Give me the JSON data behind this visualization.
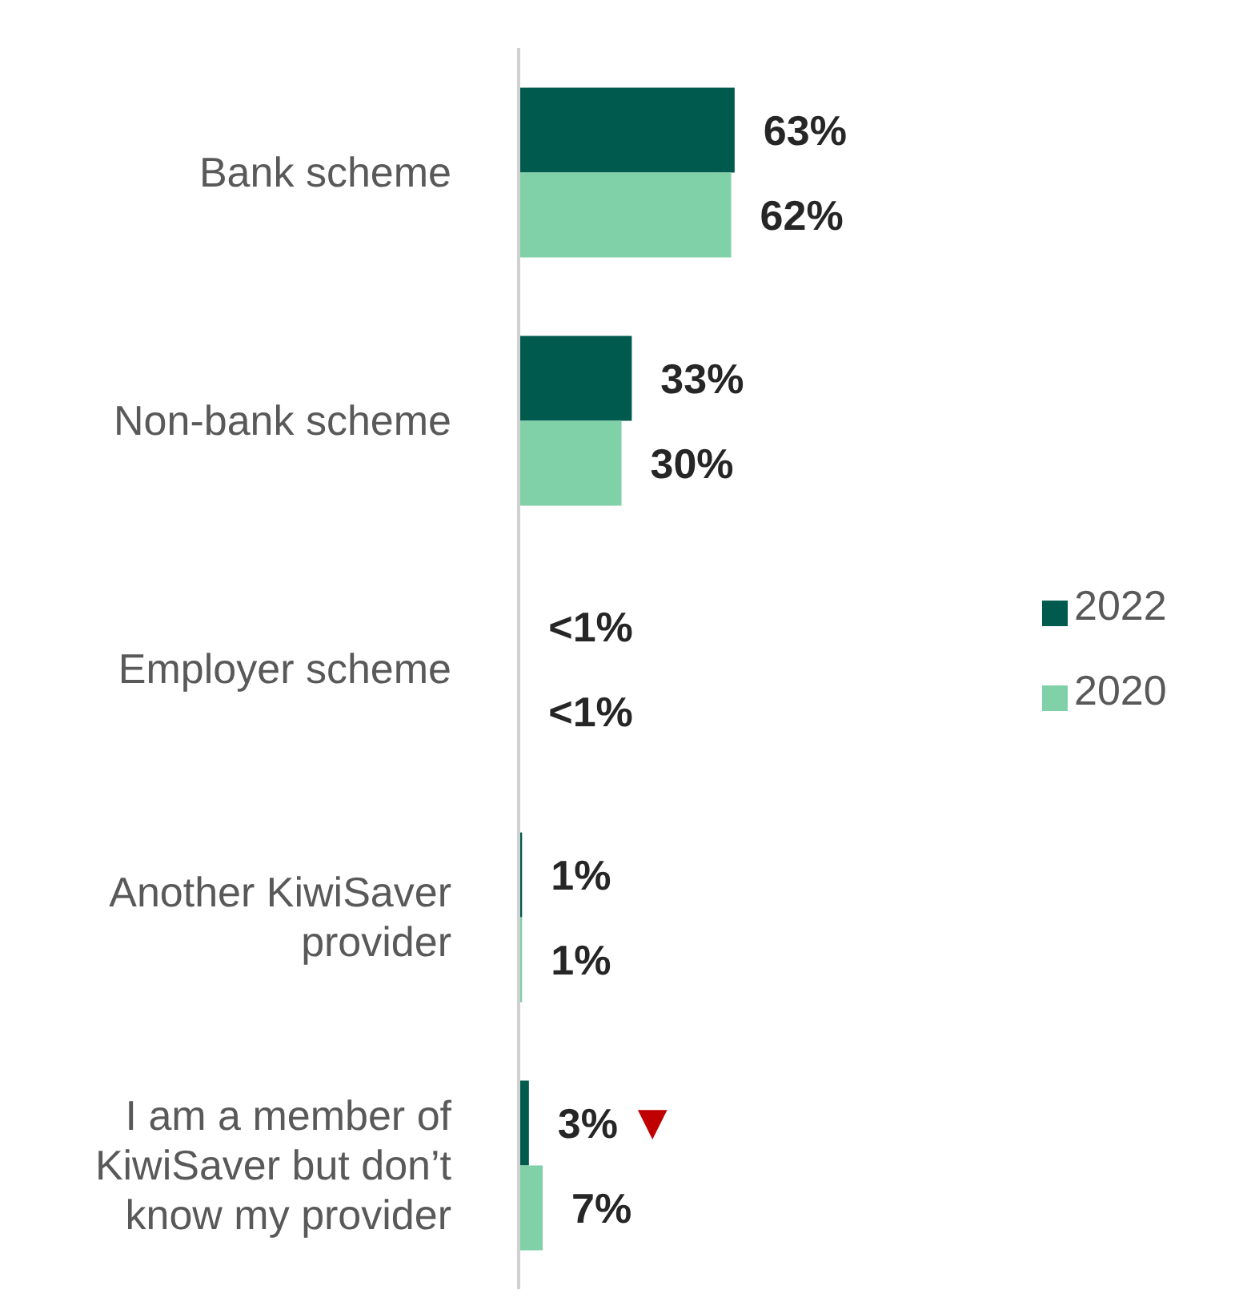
{
  "chart_data": {
    "type": "bar",
    "orientation": "horizontal",
    "categories": [
      "Bank scheme",
      "Non-bank scheme",
      "Employer scheme",
      "Another KiwiSaver provider",
      "I am a member of KiwiSaver but don’t know my provider"
    ],
    "series": [
      {
        "name": "2022",
        "color": "#005a4e",
        "values": [
          63,
          33,
          0.3,
          1,
          3
        ],
        "value_labels": [
          "63%",
          "33%",
          "<1%",
          "1%",
          "3%"
        ]
      },
      {
        "name": "2020",
        "color": "#80d0a8",
        "values": [
          62,
          30,
          0.3,
          1,
          7
        ],
        "value_labels": [
          "62%",
          "30%",
          "<1%",
          "1%",
          "7%"
        ]
      }
    ],
    "legend": "right",
    "annotations": [
      {
        "text": "▼",
        "x": 3,
        "y": "I am a member of KiwiSaver but don’t know my provider"
      }
    ]
  }
}
